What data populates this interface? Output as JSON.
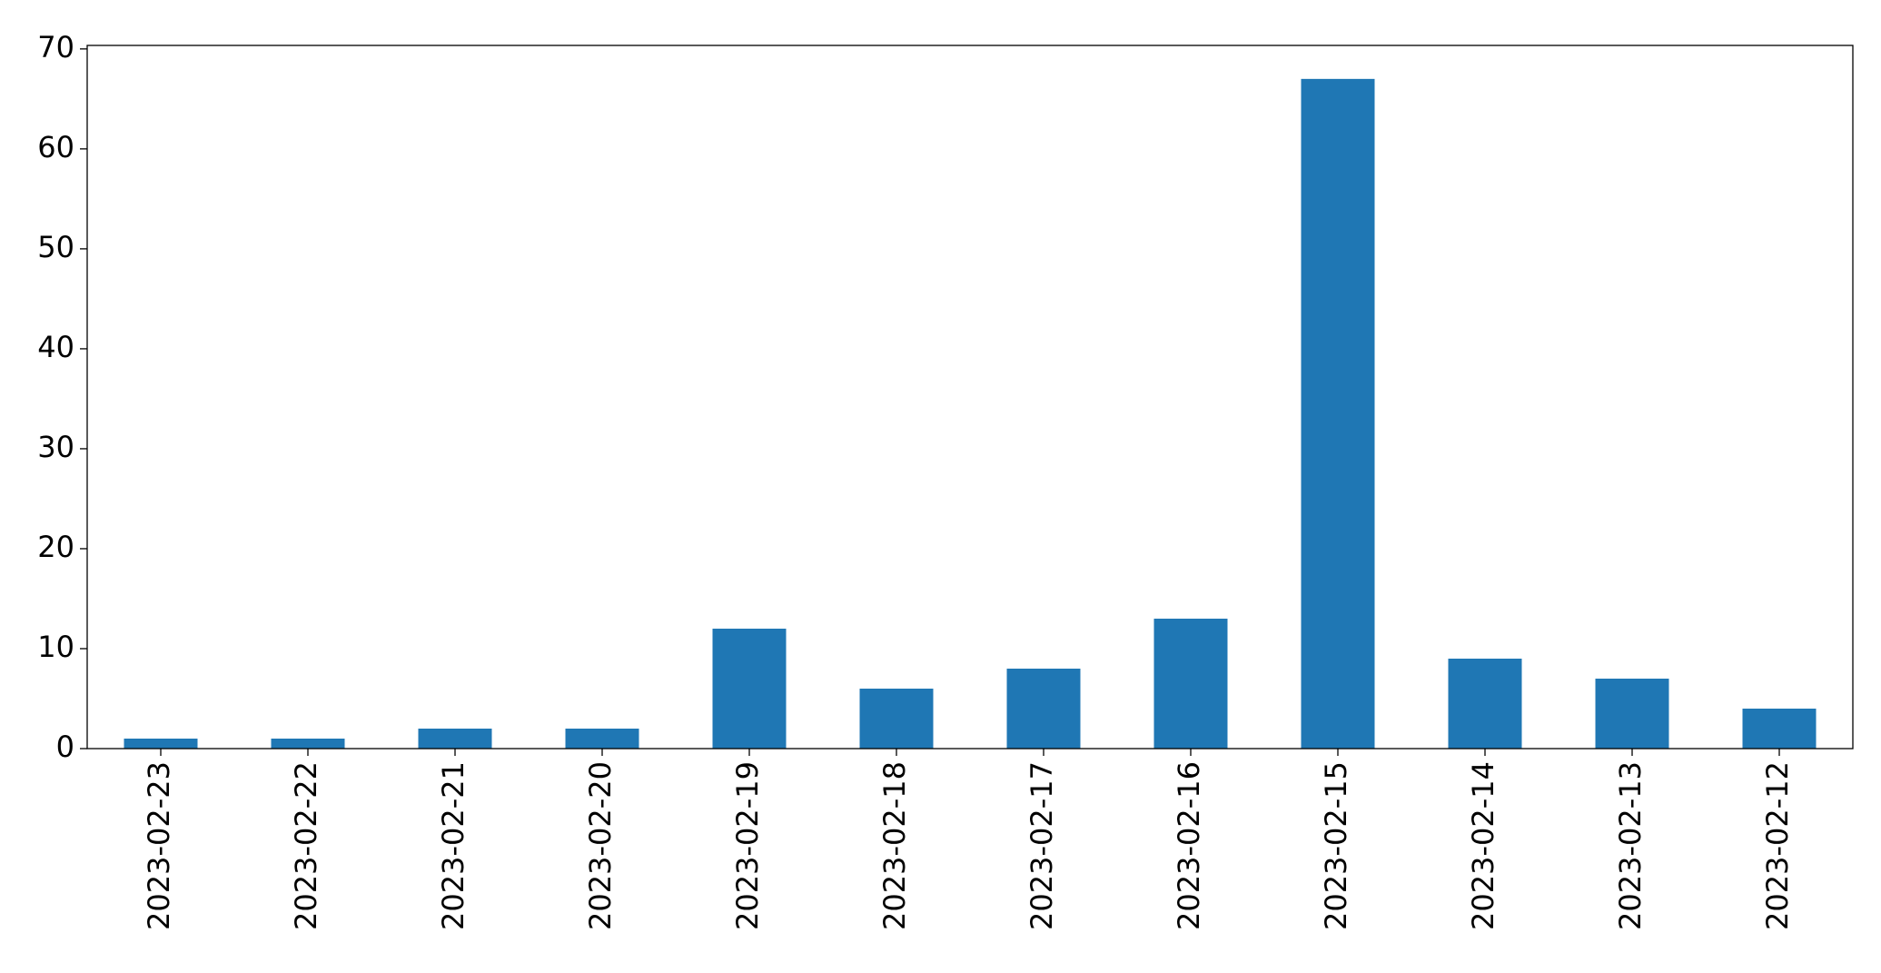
{
  "chart_data": {
    "type": "bar",
    "categories": [
      "2023-02-23",
      "2023-02-22",
      "2023-02-21",
      "2023-02-20",
      "2023-02-19",
      "2023-02-18",
      "2023-02-17",
      "2023-02-16",
      "2023-02-15",
      "2023-02-14",
      "2023-02-13",
      "2023-02-12"
    ],
    "values": [
      1,
      1,
      2,
      2,
      12,
      6,
      8,
      13,
      67,
      9,
      7,
      4
    ],
    "color": "#1f77b4",
    "ylim": [
      0,
      70.35
    ],
    "yticks": [
      0,
      10,
      20,
      30,
      40,
      50,
      60,
      70
    ],
    "grid": false
  }
}
